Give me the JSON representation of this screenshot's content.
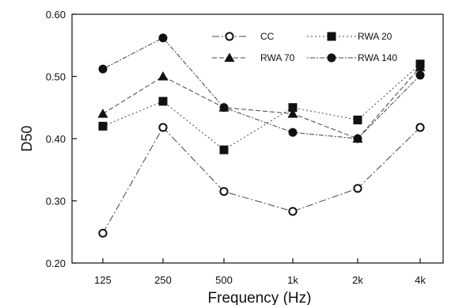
{
  "chart_data": {
    "type": "line",
    "xlabel": "Frequency (Hz)",
    "ylabel": "D50",
    "categories": [
      "125",
      "250",
      "500",
      "1k",
      "2k",
      "4k"
    ],
    "ylim": [
      0.2,
      0.6
    ],
    "yticks": [
      "0.20",
      "0.30",
      "0.40",
      "0.50",
      "0.60"
    ],
    "grid": false,
    "legend_position": "top-right",
    "series": [
      {
        "name": "CC",
        "marker": "open-circle",
        "values": [
          0.248,
          0.418,
          0.315,
          0.283,
          0.32,
          0.418
        ]
      },
      {
        "name": "RWA 20",
        "marker": "filled-square",
        "values": [
          0.42,
          0.46,
          0.382,
          0.45,
          0.43,
          0.52
        ]
      },
      {
        "name": "RWA 70",
        "marker": "filled-triangle",
        "values": [
          0.44,
          0.5,
          0.45,
          0.44,
          0.4,
          0.515
        ]
      },
      {
        "name": "RWA 140",
        "marker": "filled-circle",
        "values": [
          0.512,
          0.562,
          0.45,
          0.41,
          0.4,
          0.502
        ]
      }
    ]
  }
}
